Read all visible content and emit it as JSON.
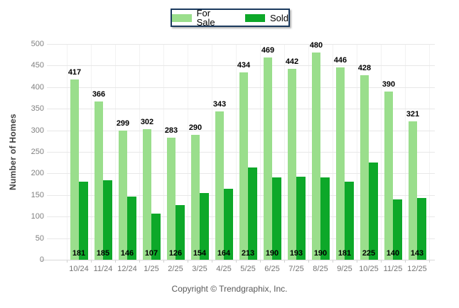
{
  "chart_data": {
    "type": "bar",
    "categories": [
      "10/24",
      "11/24",
      "12/24",
      "1/25",
      "2/25",
      "3/25",
      "4/25",
      "5/25",
      "6/25",
      "7/25",
      "8/25",
      "9/25",
      "10/25",
      "11/25",
      "12/25"
    ],
    "series": [
      {
        "name": "For Sale",
        "color": "#9ade8c",
        "values": [
          417,
          366,
          299,
          302,
          283,
          290,
          343,
          434,
          469,
          442,
          480,
          446,
          428,
          390,
          321
        ]
      },
      {
        "name": "Sold",
        "color": "#0da829",
        "values": [
          181,
          185,
          146,
          107,
          126,
          154,
          164,
          213,
          190,
          193,
          190,
          181,
          225,
          140,
          143
        ]
      }
    ],
    "title": "",
    "xlabel": "",
    "ylabel": "Number of Homes",
    "ylim": [
      0,
      500
    ],
    "ytick_step": 50,
    "grid": true,
    "legend_position": "top-center",
    "value_labels": "for-sale-above-bar, sold-inside-bar-bottom"
  },
  "legend": {
    "items": [
      {
        "label": "For Sale",
        "color": "#9ade8c"
      },
      {
        "label": "Sold",
        "color": "#0da829"
      }
    ],
    "border_color": "#1b3a5e"
  },
  "footer": {
    "copyright": "Copyright © Trendgraphix, Inc."
  }
}
